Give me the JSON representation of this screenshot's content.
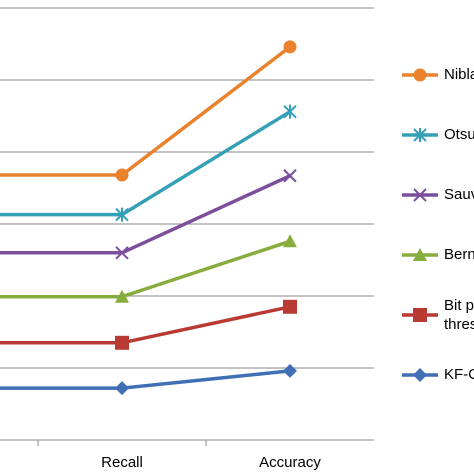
{
  "chart_data": {
    "type": "line",
    "categories": [
      null,
      "Recall",
      "Accuracy"
    ],
    "series": [
      {
        "name": "Niblack",
        "color": "#e8822d",
        "marker": "circle",
        "values": [
          3.68,
          3.68,
          5.46
        ]
      },
      {
        "name": "Otsu",
        "color": "#34a0b5",
        "marker": "star",
        "values": [
          3.13,
          3.13,
          4.56
        ]
      },
      {
        "name": "Sauvola",
        "color": "#7b4f9c",
        "marker": "x",
        "values": [
          2.6,
          2.6,
          3.67
        ]
      },
      {
        "name": "Bernsen",
        "color": "#87ad3e",
        "marker": "triangle",
        "values": [
          1.99,
          1.99,
          2.76
        ]
      },
      {
        "name": "Bit plane threshold",
        "color": "#b93a33",
        "marker": "square",
        "values": [
          1.35,
          1.35,
          1.85
        ]
      },
      {
        "name": "KF-C",
        "color": "#3f6fb5",
        "marker": "diamond",
        "values": [
          0.72,
          0.72,
          0.96
        ]
      }
    ],
    "ylim": [
      0,
      6
    ],
    "yticks": [
      0,
      1,
      2,
      3,
      4,
      5,
      6
    ],
    "grid": true
  }
}
